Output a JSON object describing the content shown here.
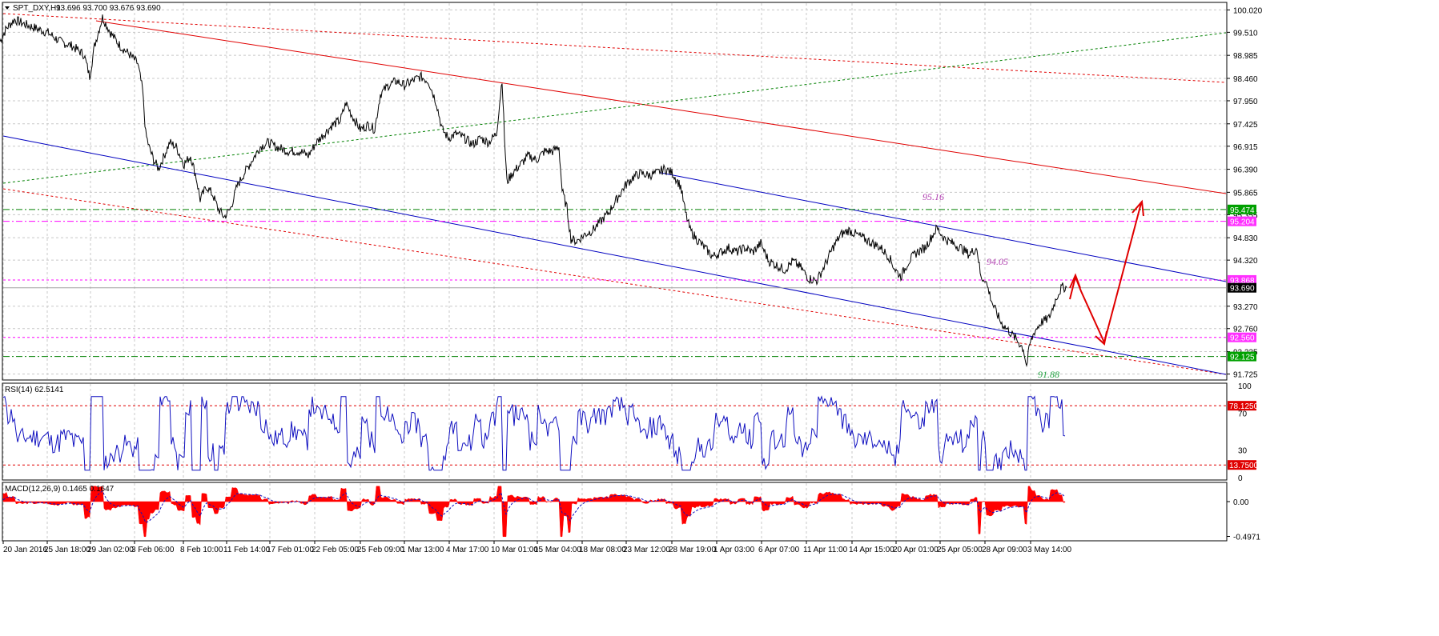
{
  "chart_data": {
    "type": "line",
    "symbol": "SPT_DXY,H1",
    "ohlc_header": "93.696 93.700 93.676 93.690",
    "price_scale": {
      "ticks": [
        "100.020",
        "99.510",
        "98.985",
        "98.460",
        "97.950",
        "97.425",
        "96.915",
        "96.390",
        "95.865",
        "95.355",
        "94.830",
        "94.320",
        "93.270",
        "92.760",
        "92.235",
        "91.725"
      ],
      "ylim": [
        91.68,
        100.1
      ]
    },
    "price_tags": [
      {
        "text": "95.474",
        "value": 95.474,
        "bg": "#00a000",
        "fg": "#ffffff"
      },
      {
        "text": "95.204",
        "value": 95.204,
        "bg": "#ff30ff",
        "fg": "#ffffff"
      },
      {
        "text": "93.868",
        "value": 93.868,
        "bg": "#ff30ff",
        "fg": "#ffffff"
      },
      {
        "text": "93.690",
        "value": 93.69,
        "bg": "#000000",
        "fg": "#ffffff"
      },
      {
        "text": "92.560",
        "value": 92.56,
        "bg": "#ff30ff",
        "fg": "#ffffff"
      },
      {
        "text": "92.125",
        "value": 92.125,
        "bg": "#00a000",
        "fg": "#ffffff"
      }
    ],
    "annotations": [
      {
        "text": "95.16",
        "color": "#b040b0"
      },
      {
        "text": "94.05",
        "color": "#b040b0"
      },
      {
        "text": "91.88",
        "color": "#20a040"
      }
    ],
    "time_ticks": [
      "20 Jan 2016",
      "25 Jan 18:00",
      "29 Jan 02:00",
      "3 Feb 06:00",
      "8 Feb 10:00",
      "11 Feb 14:00",
      "17 Feb 01:00",
      "22 Feb 05:00",
      "25 Feb 09:00",
      "1 Mar 13:00",
      "4 Mar 17:00",
      "10 Mar 01:00",
      "15 Mar 04:00",
      "18 Mar 08:00",
      "23 Mar 12:00",
      "28 Mar 19:00",
      "1 Apr 03:00",
      "6 Apr 07:00",
      "11 Apr 11:00",
      "14 Apr 15:00",
      "20 Apr 01:00",
      "25 Apr 05:00",
      "28 Apr 09:00",
      "3 May 14:00"
    ],
    "price_path": [
      [
        0,
        99.3
      ],
      [
        8,
        99.6
      ],
      [
        18,
        99.8
      ],
      [
        30,
        99.7
      ],
      [
        45,
        99.6
      ],
      [
        60,
        99.5
      ],
      [
        75,
        99.3
      ],
      [
        90,
        99.2
      ],
      [
        105,
        99.0
      ],
      [
        112,
        98.5
      ],
      [
        118,
        99.2
      ],
      [
        124,
        99.6
      ],
      [
        128,
        99.85
      ],
      [
        138,
        99.5
      ],
      [
        150,
        99.2
      ],
      [
        162,
        99.0
      ],
      [
        172,
        98.8
      ],
      [
        178,
        98.2
      ],
      [
        182,
        97.2
      ],
      [
        186,
        96.9
      ],
      [
        192,
        96.6
      ],
      [
        198,
        96.4
      ],
      [
        205,
        96.7
      ],
      [
        212,
        97.0
      ],
      [
        220,
        96.9
      ],
      [
        230,
        96.5
      ],
      [
        238,
        96.7
      ],
      [
        245,
        96.2
      ],
      [
        250,
        95.7
      ],
      [
        258,
        96.0
      ],
      [
        266,
        95.8
      ],
      [
        272,
        95.5
      ],
      [
        280,
        95.3
      ],
      [
        288,
        95.5
      ],
      [
        296,
        96.0
      ],
      [
        305,
        96.3
      ],
      [
        315,
        96.6
      ],
      [
        325,
        96.9
      ],
      [
        335,
        97.0
      ],
      [
        345,
        96.9
      ],
      [
        360,
        96.8
      ],
      [
        375,
        96.8
      ],
      [
        385,
        96.7
      ],
      [
        395,
        97.0
      ],
      [
        405,
        97.2
      ],
      [
        415,
        97.4
      ],
      [
        425,
        97.5
      ],
      [
        432,
        97.9
      ],
      [
        440,
        97.6
      ],
      [
        450,
        97.3
      ],
      [
        460,
        97.4
      ],
      [
        468,
        97.3
      ],
      [
        475,
        98.1
      ],
      [
        485,
        98.3
      ],
      [
        495,
        98.4
      ],
      [
        505,
        98.3
      ],
      [
        515,
        98.4
      ],
      [
        525,
        98.5
      ],
      [
        535,
        98.4
      ],
      [
        545,
        97.9
      ],
      [
        552,
        97.3
      ],
      [
        560,
        97.1
      ],
      [
        570,
        97.2
      ],
      [
        580,
        97.1
      ],
      [
        590,
        96.95
      ],
      [
        600,
        97.1
      ],
      [
        610,
        97.0
      ],
      [
        620,
        97.2
      ],
      [
        627,
        98.45
      ],
      [
        630,
        97.1
      ],
      [
        633,
        96.1
      ],
      [
        640,
        96.3
      ],
      [
        650,
        96.5
      ],
      [
        660,
        96.7
      ],
      [
        670,
        96.6
      ],
      [
        680,
        96.8
      ],
      [
        690,
        96.8
      ],
      [
        698,
        96.9
      ],
      [
        702,
        95.9
      ],
      [
        708,
        95.5
      ],
      [
        713,
        94.8
      ],
      [
        720,
        94.75
      ],
      [
        730,
        94.9
      ],
      [
        740,
        95.0
      ],
      [
        750,
        95.2
      ],
      [
        760,
        95.4
      ],
      [
        770,
        95.7
      ],
      [
        780,
        96.0
      ],
      [
        790,
        96.2
      ],
      [
        800,
        96.3
      ],
      [
        810,
        96.25
      ],
      [
        820,
        96.3
      ],
      [
        830,
        96.4
      ],
      [
        840,
        96.3
      ],
      [
        850,
        96.0
      ],
      [
        856,
        95.4
      ],
      [
        862,
        95.0
      ],
      [
        870,
        94.8
      ],
      [
        880,
        94.6
      ],
      [
        890,
        94.4
      ],
      [
        900,
        94.5
      ],
      [
        910,
        94.6
      ],
      [
        920,
        94.5
      ],
      [
        930,
        94.6
      ],
      [
        940,
        94.5
      ],
      [
        950,
        94.7
      ],
      [
        960,
        94.3
      ],
      [
        970,
        94.2
      ],
      [
        980,
        94.1
      ],
      [
        990,
        94.3
      ],
      [
        1000,
        94.15
      ],
      [
        1010,
        93.9
      ],
      [
        1020,
        93.85
      ],
      [
        1030,
        94.2
      ],
      [
        1040,
        94.6
      ],
      [
        1050,
        94.9
      ],
      [
        1060,
        95.0
      ],
      [
        1070,
        94.9
      ],
      [
        1080,
        94.8
      ],
      [
        1090,
        94.7
      ],
      [
        1100,
        94.6
      ],
      [
        1110,
        94.4
      ],
      [
        1118,
        94.1
      ],
      [
        1125,
        93.95
      ],
      [
        1135,
        94.3
      ],
      [
        1145,
        94.5
      ],
      [
        1155,
        94.6
      ],
      [
        1165,
        94.9
      ],
      [
        1170,
        95.05
      ],
      [
        1180,
        94.8
      ],
      [
        1190,
        94.7
      ],
      [
        1200,
        94.6
      ],
      [
        1210,
        94.45
      ],
      [
        1220,
        94.6
      ],
      [
        1225,
        93.9
      ],
      [
        1230,
        93.9
      ],
      [
        1240,
        93.3
      ],
      [
        1250,
        92.9
      ],
      [
        1260,
        92.7
      ],
      [
        1270,
        92.5
      ],
      [
        1278,
        92.3
      ],
      [
        1282,
        91.9
      ],
      [
        1286,
        92.4
      ],
      [
        1292,
        92.7
      ],
      [
        1300,
        92.9
      ],
      [
        1310,
        93.0
      ],
      [
        1320,
        93.5
      ],
      [
        1326,
        93.7
      ],
      [
        1332,
        93.7
      ]
    ],
    "rsi": {
      "label": "RSI(14) 62.5141",
      "ylim": [
        0,
        100
      ],
      "ticks": [
        "100",
        "70",
        "30",
        "0"
      ],
      "levels": [
        {
          "text": "78.1250",
          "value": 78.125
        },
        {
          "text": "13.7500",
          "value": 13.75
        }
      ]
    },
    "macd": {
      "label": "MACD(12,26,9) 0.1465 0.1647",
      "ylim": [
        -0.5371,
        0.24
      ],
      "ticks": [
        "0.00",
        "-0.4971"
      ]
    }
  }
}
